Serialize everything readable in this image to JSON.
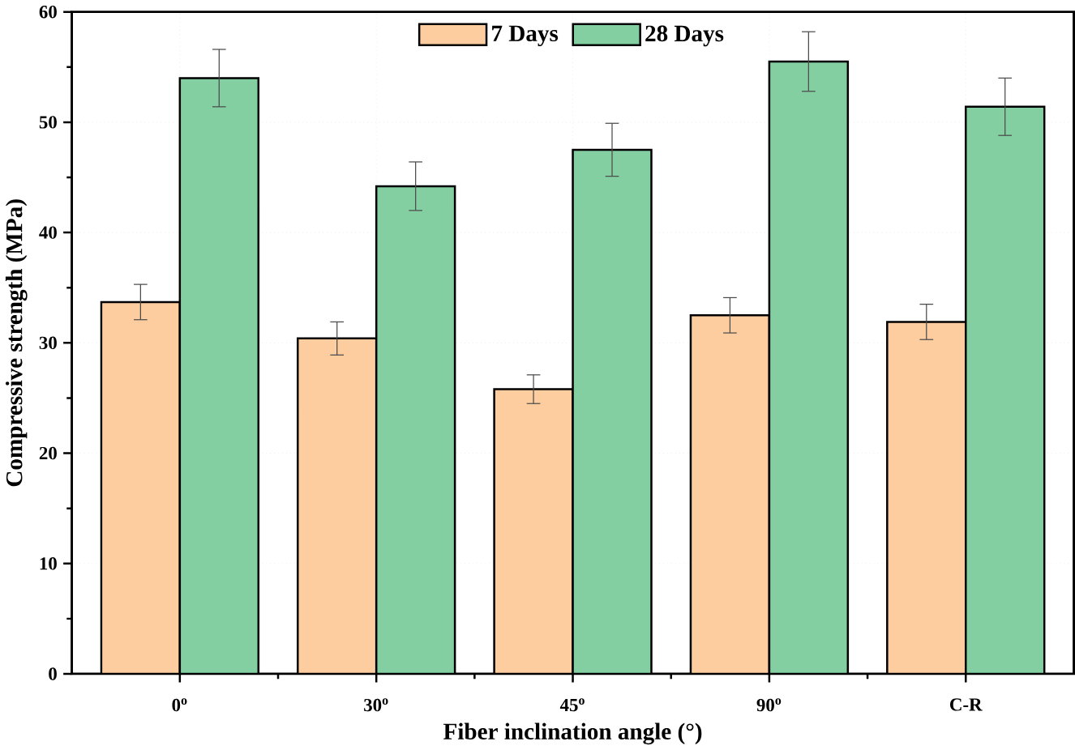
{
  "chart_data": {
    "type": "bar",
    "xlabel": "Fiber inclination angle (°)",
    "ylabel": "Compressive strength (MPa)",
    "categories": [
      "0$^{o}$",
      "30$^{o}$",
      "45$^{o}$",
      "90$^{o}$",
      "C-R"
    ],
    "series": [
      {
        "name": "7 Days",
        "color": "#fdcd9f",
        "values": [
          33.7,
          30.4,
          25.8,
          32.5,
          31.9
        ],
        "errors": [
          1.6,
          1.5,
          1.3,
          1.6,
          1.6
        ]
      },
      {
        "name": "28 Days",
        "color": "#83cfa2",
        "values": [
          54.0,
          44.2,
          47.5,
          55.5,
          51.4
        ],
        "errors": [
          2.6,
          2.2,
          2.4,
          2.7,
          2.6
        ]
      }
    ],
    "ylim": [
      0,
      60
    ],
    "yticks": [
      0,
      10,
      20,
      30,
      40,
      50,
      60
    ],
    "grid": true,
    "legend": "top"
  }
}
